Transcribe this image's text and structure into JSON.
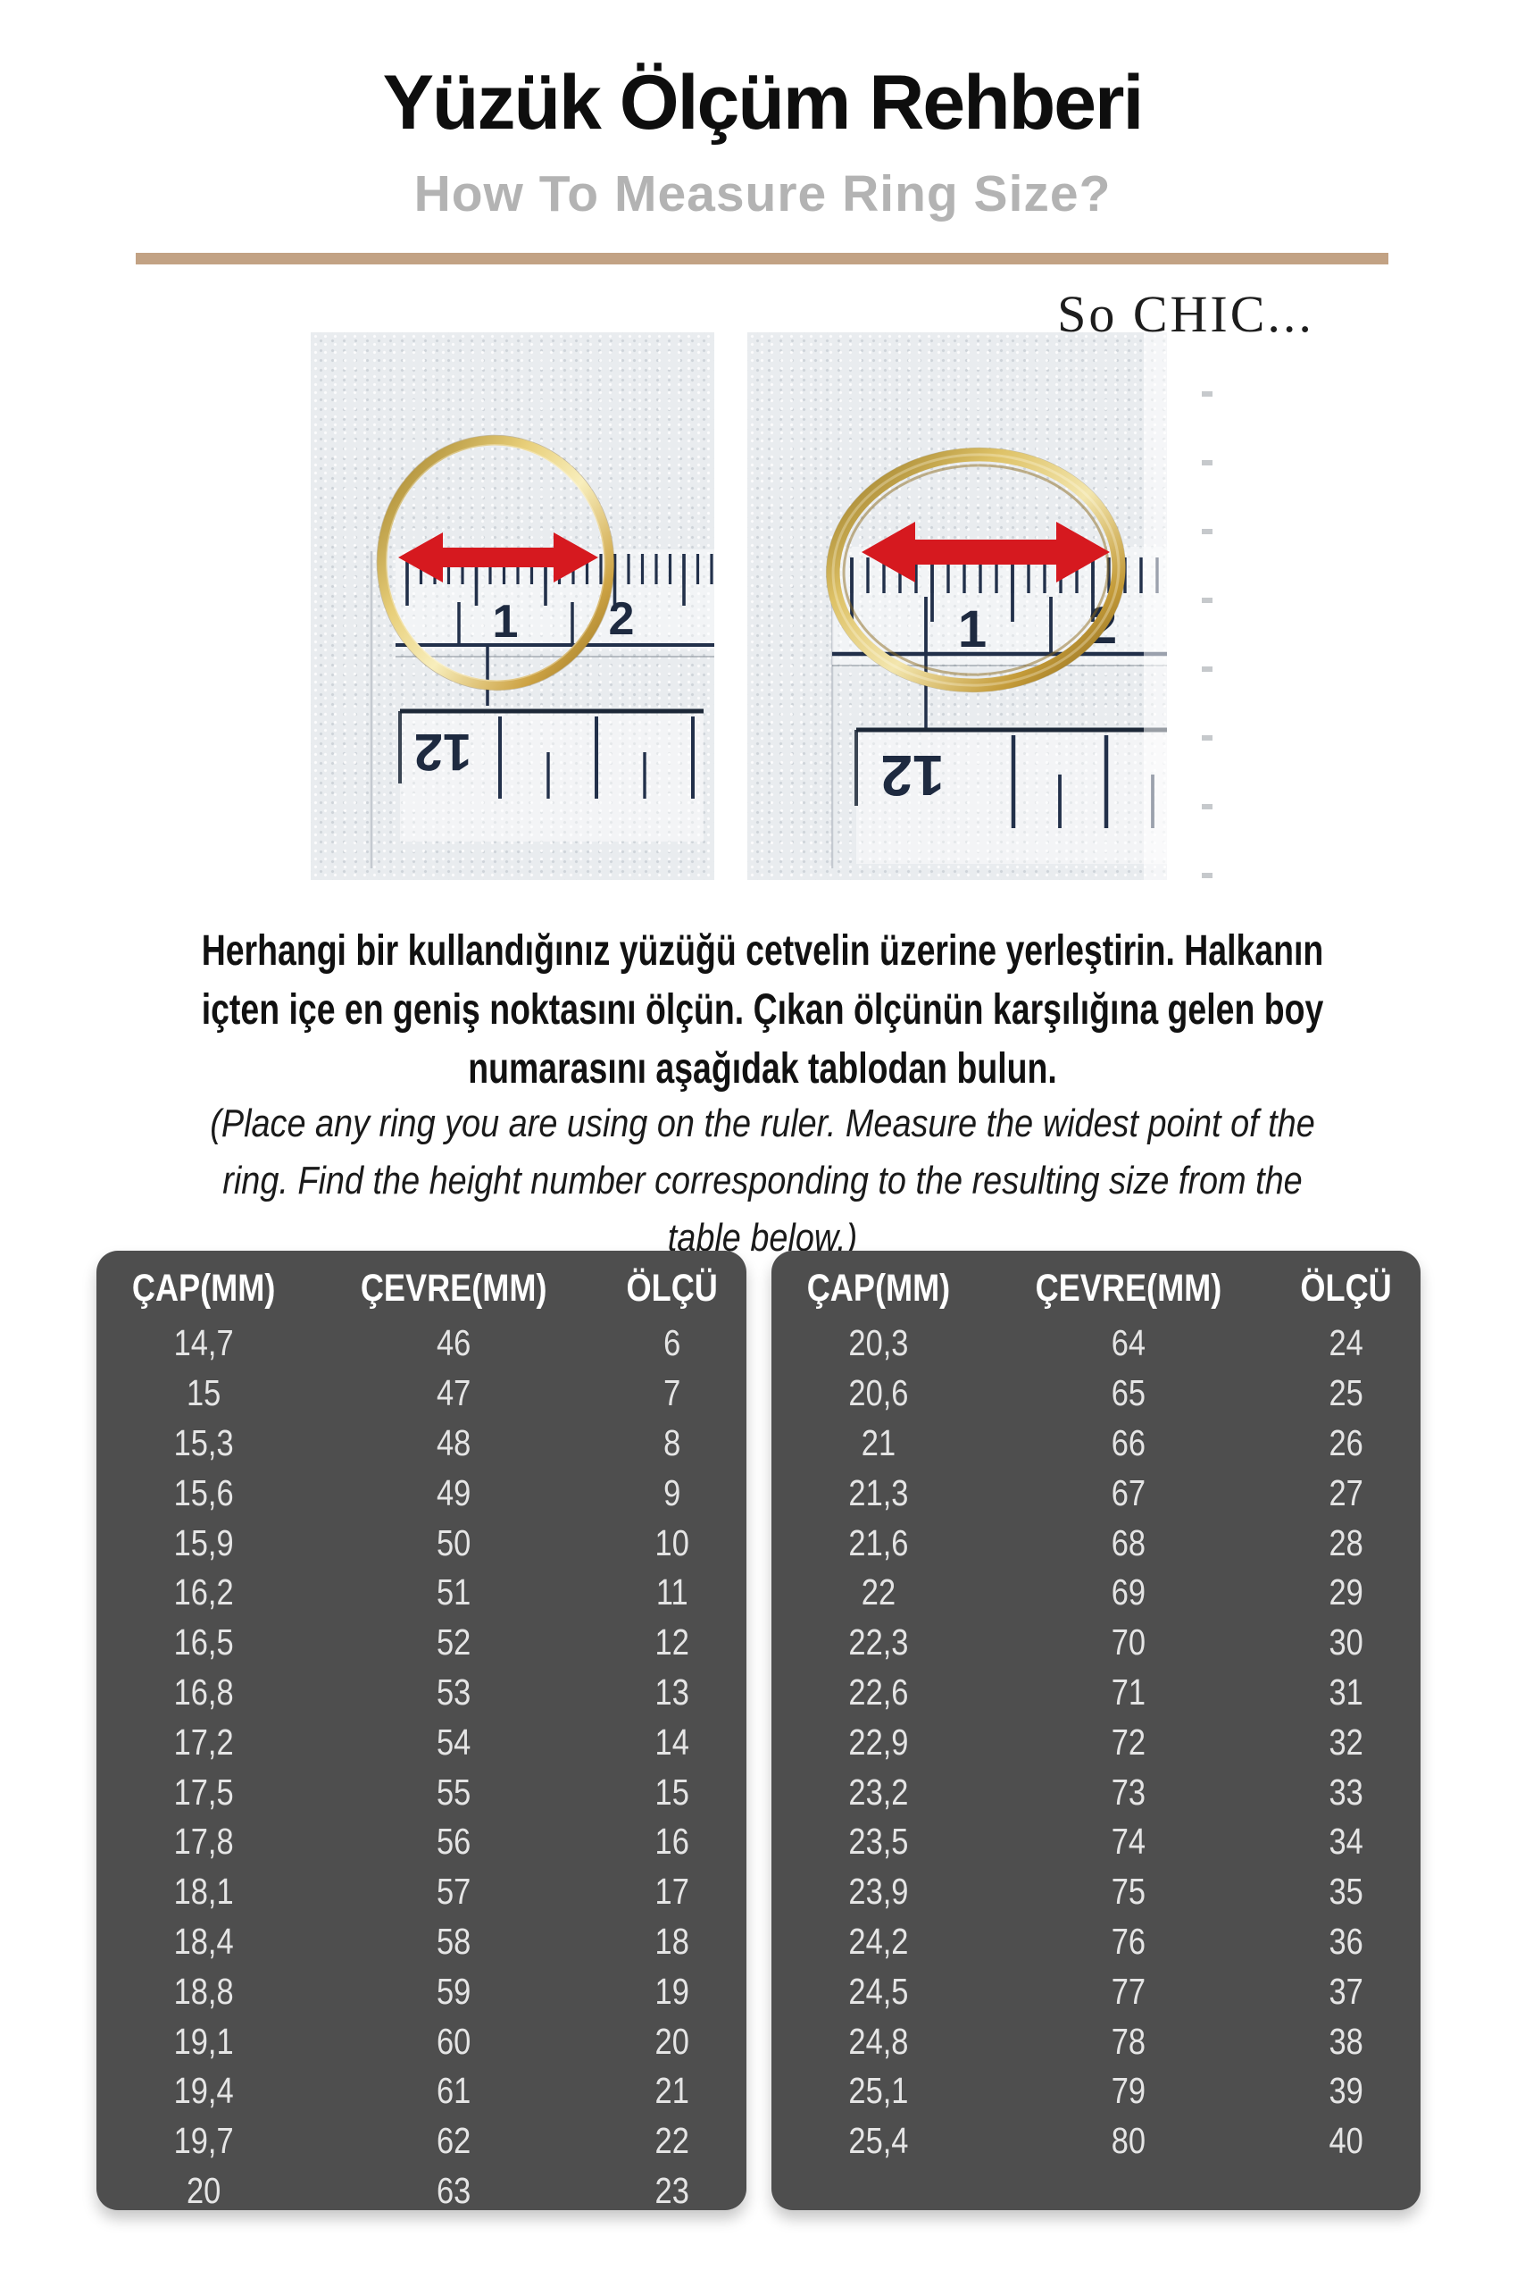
{
  "header": {
    "title": "Yüzük Ölçüm Rehberi",
    "subtitle": "How To Measure Ring Size?"
  },
  "brand": {
    "logo": "So CHIC..."
  },
  "photos": {
    "left": {
      "cm_label_1": "1",
      "cm_label_2": "2",
      "reversed_label": "12"
    },
    "right": {
      "cm_label_1": "1",
      "cm_label_2": "2",
      "reversed_label": "12"
    }
  },
  "instructions": {
    "turkish": "Herhangi bir kullandığınız yüzüğü cetvelin üzerine yerleştirin. Halkanın\niçten içe en geniş noktasını ölçün. Çıkan ölçünün karşılığına gelen boy\nnumarasını aşağıdak tablodan bulun.",
    "english": "(Place any ring you are using on the ruler. Measure the widest point of the\nring. Find the height number corresponding to the resulting size from the\ntable below.)"
  },
  "size_chart": {
    "headers": [
      "ÇAP(MM)",
      "ÇEVRE(MM)",
      "ÖLÇÜ"
    ],
    "left_rows": [
      [
        "14,7",
        "46",
        "6"
      ],
      [
        "15",
        "47",
        "7"
      ],
      [
        "15,3",
        "48",
        "8"
      ],
      [
        "15,6",
        "49",
        "9"
      ],
      [
        "15,9",
        "50",
        "10"
      ],
      [
        "16,2",
        "51",
        "11"
      ],
      [
        "16,5",
        "52",
        "12"
      ],
      [
        "16,8",
        "53",
        "13"
      ],
      [
        "17,2",
        "54",
        "14"
      ],
      [
        "17,5",
        "55",
        "15"
      ],
      [
        "17,8",
        "56",
        "16"
      ],
      [
        "18,1",
        "57",
        "17"
      ],
      [
        "18,4",
        "58",
        "18"
      ],
      [
        "18,8",
        "59",
        "19"
      ],
      [
        "19,1",
        "60",
        "20"
      ],
      [
        "19,4",
        "61",
        "21"
      ],
      [
        "19,7",
        "62",
        "22"
      ],
      [
        "20",
        "63",
        "23"
      ]
    ],
    "right_rows": [
      [
        "20,3",
        "64",
        "24"
      ],
      [
        "20,6",
        "65",
        "25"
      ],
      [
        "21",
        "66",
        "26"
      ],
      [
        "21,3",
        "67",
        "27"
      ],
      [
        "21,6",
        "68",
        "28"
      ],
      [
        "22",
        "69",
        "29"
      ],
      [
        "22,3",
        "70",
        "30"
      ],
      [
        "22,6",
        "71",
        "31"
      ],
      [
        "22,9",
        "72",
        "32"
      ],
      [
        "23,2",
        "73",
        "33"
      ],
      [
        "23,5",
        "74",
        "34"
      ],
      [
        "23,9",
        "75",
        "35"
      ],
      [
        "24,2",
        "76",
        "36"
      ],
      [
        "24,5",
        "77",
        "37"
      ],
      [
        "24,8",
        "78",
        "38"
      ],
      [
        "25,1",
        "79",
        "39"
      ],
      [
        "25,4",
        "80",
        "40"
      ]
    ]
  },
  "colors": {
    "divider": "#c2a284",
    "subtitle": "#b3b3b3",
    "table_background": "#4e4e4e",
    "table_header_text": "#ffffff",
    "table_row_text": "#e5e5e5",
    "arrow_red": "#d6191f",
    "gold": "#c9a13b"
  }
}
